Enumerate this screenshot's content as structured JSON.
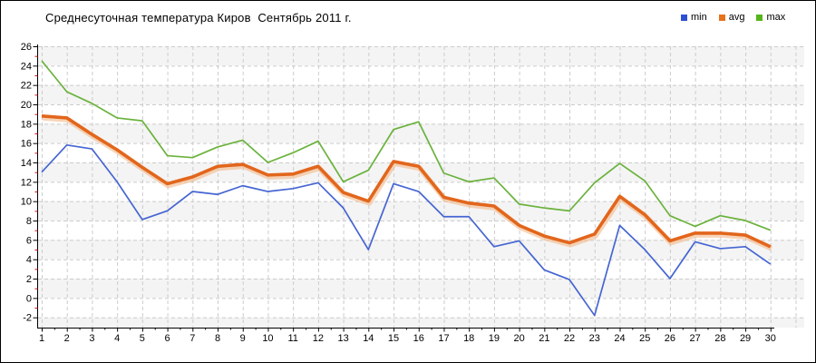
{
  "title": "Среднесуточная температура Киров  Сентябрь 2011 г.",
  "legend": {
    "items": [
      {
        "label": "min",
        "color": "#2b50d4"
      },
      {
        "label": "avg",
        "color": "#e8711c"
      },
      {
        "label": "max",
        "color": "#55b41c"
      }
    ]
  },
  "chart_data": {
    "type": "line",
    "title": "Среднесуточная температура Киров  Сентябрь 2011 г.",
    "x": [
      1,
      2,
      3,
      4,
      5,
      6,
      7,
      8,
      9,
      10,
      11,
      12,
      13,
      14,
      15,
      16,
      17,
      18,
      19,
      20,
      21,
      22,
      23,
      24,
      25,
      26,
      27,
      28,
      29,
      30
    ],
    "xlabel": "",
    "ylabel": "",
    "ylim": [
      -2,
      26
    ],
    "ytick_step": 2,
    "yticks": [
      26,
      24,
      22,
      20,
      18,
      16,
      14,
      12,
      10,
      8,
      6,
      4,
      2,
      0,
      -2
    ],
    "grid": true,
    "legend_position": "top-right",
    "series": [
      {
        "name": "min",
        "color": "#4565d2",
        "values": [
          13.0,
          15.8,
          15.4,
          12.0,
          8.1,
          9.0,
          11.0,
          10.7,
          11.6,
          11.0,
          11.3,
          11.9,
          9.3,
          5.0,
          11.8,
          11.0,
          8.4,
          8.4,
          5.3,
          5.9,
          2.9,
          1.9,
          -1.8,
          7.5,
          5.0,
          2.0,
          5.8,
          5.1,
          5.3,
          3.5
        ]
      },
      {
        "name": "avg",
        "color": "#e2661c",
        "halo_color": "#f2bd92",
        "values": [
          18.8,
          18.6,
          16.9,
          15.3,
          13.5,
          11.8,
          12.5,
          13.6,
          13.8,
          12.7,
          12.8,
          13.6,
          10.9,
          10.0,
          14.1,
          13.6,
          10.4,
          9.8,
          9.5,
          7.5,
          6.4,
          5.7,
          6.6,
          10.5,
          8.6,
          5.9,
          6.7,
          6.7,
          6.5,
          5.3
        ]
      },
      {
        "name": "max",
        "color": "#6ab23c",
        "values": [
          24.5,
          21.3,
          20.1,
          18.6,
          18.3,
          14.7,
          14.5,
          15.6,
          16.3,
          14.0,
          15.0,
          16.2,
          12.0,
          13.2,
          17.4,
          18.2,
          12.9,
          12.0,
          12.4,
          9.7,
          9.3,
          9.0,
          11.9,
          13.9,
          12.1,
          8.5,
          7.4,
          8.5,
          8.0,
          7.0
        ]
      }
    ],
    "colors": {
      "plot_band_light": "#f4f4f4",
      "plot_band_white": "#ffffff",
      "gridline": "#cccccc",
      "axis": "#000000",
      "minor_tick": "#cc1111",
      "text": "#000000"
    }
  }
}
